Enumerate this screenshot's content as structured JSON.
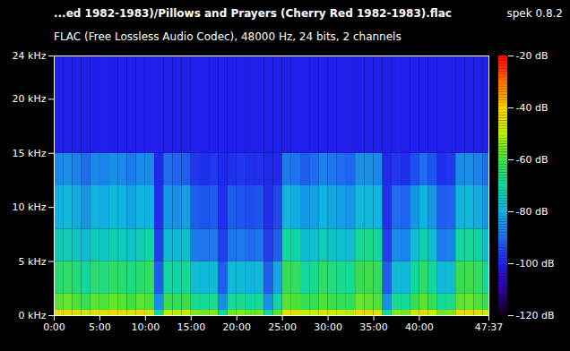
{
  "chart_data": {
    "type": "heatmap",
    "title": "...ed 1982-1983)/Pillows and Prayers (Cherry Red 1982-1983).flac",
    "annotation": "spek 0.8.2",
    "subtitle": "FLAC (Free Lossless Audio Codec), 48000 Hz, 24 bits, 2 channels",
    "xlim": [
      0,
      47.617
    ],
    "xticks": [
      {
        "value": 0,
        "label": "0:00"
      },
      {
        "value": 5,
        "label": "5:00"
      },
      {
        "value": 10,
        "label": "10:00"
      },
      {
        "value": 15,
        "label": "15:00"
      },
      {
        "value": 20,
        "label": "20:00"
      },
      {
        "value": 25,
        "label": "25:00"
      },
      {
        "value": 30,
        "label": "30:00"
      },
      {
        "value": 35,
        "label": "35:00"
      },
      {
        "value": 40,
        "label": "40:00"
      },
      {
        "value": 47.617,
        "label": "47:37"
      }
    ],
    "ylim": [
      0,
      24
    ],
    "yticks": [
      {
        "value": 0,
        "label": "0 kHz"
      },
      {
        "value": 5,
        "label": "5 kHz"
      },
      {
        "value": 10,
        "label": "10 kHz"
      },
      {
        "value": 15,
        "label": "15 kHz"
      },
      {
        "value": 20,
        "label": "20 kHz"
      },
      {
        "value": 24,
        "label": "24 kHz"
      }
    ],
    "cells": {
      "time_edges": [
        0,
        1,
        2,
        3,
        4,
        5,
        6,
        7,
        8,
        9,
        10,
        11,
        12,
        13,
        14,
        15,
        16,
        17,
        18,
        19,
        20,
        21,
        22,
        23,
        24,
        25,
        26,
        27,
        28,
        29,
        30,
        31,
        32,
        33,
        34,
        35,
        36,
        37,
        38,
        39,
        40,
        41,
        42,
        43,
        44,
        45,
        46,
        47,
        47.617
      ],
      "freq_edges": [
        0,
        0.5,
        2,
        5,
        8,
        12,
        15,
        24
      ],
      "levels": [
        [
          -45,
          -44,
          -46,
          -50,
          -45,
          -46,
          -44,
          -45,
          -47,
          -45,
          -46,
          -70,
          -50,
          -51,
          -49,
          -55,
          -56,
          -55,
          -70,
          -56,
          -55,
          -57,
          -56,
          -70,
          -58,
          -45,
          -46,
          -50,
          -50,
          -46,
          -49,
          -50,
          -51,
          -44,
          -45,
          -46,
          -70,
          -55,
          -56,
          -50,
          -45,
          -50,
          -56,
          -55,
          -45,
          -44,
          -46,
          -50
        ],
        [
          -58,
          -57,
          -59,
          -62,
          -58,
          -59,
          -57,
          -58,
          -60,
          -58,
          -59,
          -85,
          -62,
          -63,
          -61,
          -68,
          -69,
          -68,
          -85,
          -69,
          -68,
          -70,
          -69,
          -85,
          -71,
          -58,
          -59,
          -62,
          -62,
          -59,
          -61,
          -62,
          -63,
          -57,
          -58,
          -59,
          -85,
          -68,
          -69,
          -62,
          -58,
          -62,
          -69,
          -68,
          -58,
          -57,
          -59,
          -62
        ],
        [
          -65,
          -64,
          -66,
          -70,
          -65,
          -66,
          -64,
          -65,
          -67,
          -65,
          -63,
          -92,
          -70,
          -71,
          -69,
          -78,
          -79,
          -78,
          -92,
          -79,
          -78,
          -80,
          -79,
          -92,
          -82,
          -62,
          -63,
          -70,
          -68,
          -64,
          -66,
          -68,
          -69,
          -62,
          -61,
          -63,
          -92,
          -78,
          -79,
          -70,
          -64,
          -70,
          -79,
          -78,
          -62,
          -61,
          -63,
          -70
        ],
        [
          -74,
          -73,
          -75,
          -78,
          -74,
          -75,
          -73,
          -74,
          -76,
          -74,
          -70,
          -96,
          -78,
          -79,
          -77,
          -88,
          -89,
          -88,
          -96,
          -89,
          -88,
          -90,
          -89,
          -96,
          -92,
          -70,
          -71,
          -78,
          -77,
          -74,
          -76,
          -77,
          -78,
          -69,
          -68,
          -70,
          -96,
          -86,
          -87,
          -78,
          -72,
          -78,
          -88,
          -87,
          -70,
          -69,
          -71,
          -78
        ],
        [
          -80,
          -79,
          -81,
          -84,
          -80,
          -81,
          -79,
          -80,
          -82,
          -80,
          -80,
          -98,
          -84,
          -85,
          -83,
          -92,
          -93,
          -92,
          -98,
          -92,
          -93,
          -94,
          -93,
          -98,
          -95,
          -80,
          -81,
          -84,
          -83,
          -80,
          -82,
          -83,
          -84,
          -79,
          -79,
          -80,
          -98,
          -90,
          -91,
          -84,
          -80,
          -84,
          -92,
          -91,
          -80,
          -79,
          -81,
          -84
        ],
        [
          -86,
          -85,
          -87,
          -90,
          -86,
          -87,
          -85,
          -86,
          -88,
          -86,
          -86,
          -99,
          -90,
          -91,
          -92,
          -97,
          -98,
          -97,
          -99,
          -98,
          -97,
          -98,
          -98,
          -99,
          -99,
          -88,
          -89,
          -92,
          -90,
          -87,
          -89,
          -90,
          -91,
          -85,
          -85,
          -86,
          -99,
          -97,
          -98,
          -94,
          -90,
          -93,
          -98,
          -97,
          -86,
          -85,
          -87,
          -90
        ],
        [
          -100,
          -100,
          -100,
          -100,
          -100,
          -100,
          -100,
          -100,
          -100,
          -100,
          -100,
          -100,
          -100,
          -100,
          -100,
          -100,
          -100,
          -100,
          -100,
          -100,
          -100,
          -100,
          -100,
          -100,
          -100,
          -100,
          -100,
          -100,
          -100,
          -100,
          -100,
          -100,
          -100,
          -100,
          -100,
          -100,
          -100,
          -100,
          -100,
          -100,
          -100,
          -100,
          -100,
          -100,
          -100,
          -100,
          -100,
          -100
        ]
      ]
    },
    "colorbar": {
      "range": [
        -120,
        -20
      ],
      "ticks": [
        {
          "value": -20,
          "label": "-20 dB"
        },
        {
          "value": -40,
          "label": "-40 dB"
        },
        {
          "value": -60,
          "label": "-60 dB"
        },
        {
          "value": -80,
          "label": "-80 dB"
        },
        {
          "value": -100,
          "label": "-100 dB"
        },
        {
          "value": -120,
          "label": "-120 dB"
        }
      ]
    }
  }
}
